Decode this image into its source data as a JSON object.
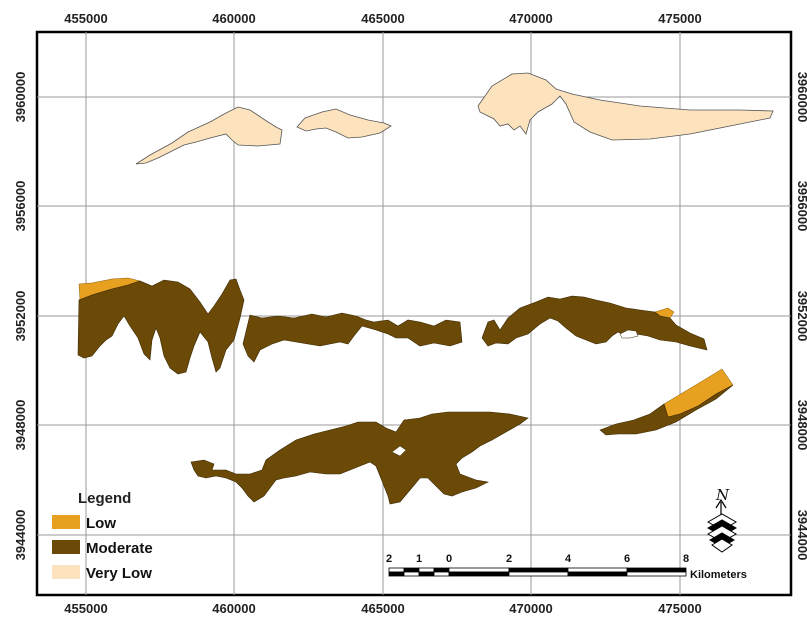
{
  "map": {
    "x_ticks": [
      "455000",
      "460000",
      "465000",
      "470000",
      "475000"
    ],
    "y_ticks": [
      "3960000",
      "3956000",
      "3952000",
      "3948000",
      "3944000"
    ],
    "colors": {
      "low": "#E8A020",
      "moderate": "#6B4A08",
      "very_low": "#FCE3BE",
      "grid": "#9a9a9a",
      "frame": "#000000"
    }
  },
  "legend": {
    "title": "Legend",
    "items": [
      {
        "label": "Low",
        "color": "#E8A020"
      },
      {
        "label": "Moderate",
        "color": "#6B4A08"
      },
      {
        "label": "Very Low",
        "color": "#FCE3BE"
      }
    ]
  },
  "scalebar": {
    "labels": [
      "2",
      "1",
      "0",
      "2",
      "4",
      "6",
      "8"
    ],
    "unit": "Kilometers"
  },
  "north_arrow": {
    "letter": "N",
    "icon": "north-arrow-icon"
  }
}
